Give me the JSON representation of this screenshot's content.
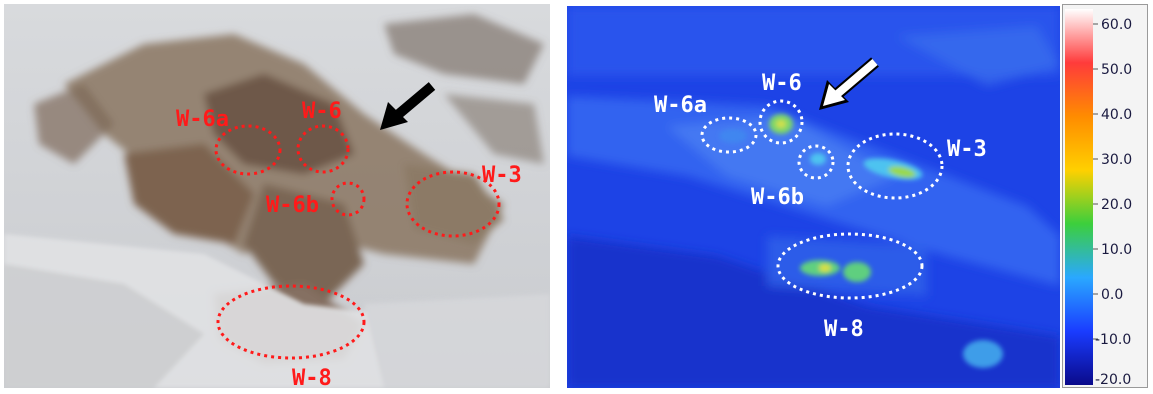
{
  "photo_labels": {
    "w6a": "W-6a",
    "w6": "W-6",
    "w6b": "W-6b",
    "w3": "W-3",
    "w8": "W-8"
  },
  "thermal_labels": {
    "w6a": "W-6a",
    "w6": "W-6",
    "w6b": "W-6b",
    "w3": "W-3",
    "w8": "W-8"
  },
  "colorbar": {
    "ticks": [
      "60.0",
      "50.0",
      "40.0",
      "30.0",
      "20.0",
      "10.0",
      "0.0",
      "-10.0",
      "-20.0"
    ],
    "colors": [
      "#ffffff",
      "#ff3b3b",
      "#ff8c00",
      "#ffd000",
      "#3ccf3c",
      "#2aa8ff",
      "#1a3cff",
      "#0a0a8a"
    ]
  },
  "colors": {
    "photo_marker": "#ff1a1a",
    "thermal_marker": "#ffffff",
    "arrow_photo": "#000000",
    "arrow_thermal": "#ffffff"
  }
}
